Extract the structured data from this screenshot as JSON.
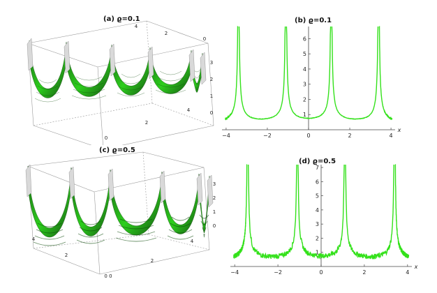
{
  "chart_data": [
    {
      "id": "a",
      "type": "surface3d",
      "title": "(a) ϱ=0.1",
      "axis_x_ticks": [
        "0",
        "2",
        "4"
      ],
      "axis_y_ticks": [
        "0",
        "2",
        "4"
      ],
      "axis_z_ticks": [
        "0",
        "1",
        "2",
        "3"
      ],
      "surface_color": "#22cc11",
      "peaks": 6
    },
    {
      "id": "b",
      "type": "line",
      "title": "(b) ϱ=0.1",
      "xlabel": "x",
      "xlim": [
        -4.2,
        4.2
      ],
      "ylim": [
        0,
        6.8
      ],
      "x_ticks": [
        -4,
        -2,
        0,
        2,
        4
      ],
      "x_tick_labels": [
        "−4",
        "−2",
        "0",
        "2",
        "4"
      ],
      "y_ticks": [
        1,
        2,
        3,
        4,
        5,
        6
      ],
      "y_tick_labels": [
        "1",
        "2",
        "3",
        "4",
        "5",
        "6"
      ],
      "singularities": [
        -3.4,
        -1.1,
        1.1,
        3.4
      ],
      "minima": [
        {
          "x": -2.3,
          "y": 0.7
        },
        {
          "x": 0,
          "y": 0.85
        },
        {
          "x": 2.3,
          "y": 0.7
        }
      ],
      "noise": 0.03,
      "series": [
        {
          "name": "ϱ=0.1",
          "color": "#33e11a"
        }
      ]
    },
    {
      "id": "c",
      "type": "surface3d",
      "title": "(c) ϱ=0.5",
      "axis_x_ticks": [
        "0",
        "2",
        "4"
      ],
      "axis_y_ticks": [
        "0",
        "2",
        "4"
      ],
      "axis_z_ticks": [
        "0",
        "1",
        "2",
        "3"
      ],
      "surface_color": "#22cc11",
      "peaks": 6
    },
    {
      "id": "d",
      "type": "line",
      "title": "(d) ϱ=0.5",
      "xlabel": "x",
      "xlim": [
        -4.2,
        4.2
      ],
      "ylim": [
        0,
        7.2
      ],
      "x_ticks": [
        -4,
        -2,
        0,
        2,
        4
      ],
      "x_tick_labels": [
        "−4",
        "−2",
        "0",
        "2",
        "4"
      ],
      "y_ticks": [
        1,
        2,
        3,
        4,
        5,
        6,
        7
      ],
      "y_tick_labels": [
        "1",
        "2",
        "3",
        "4",
        "5",
        "6",
        "7"
      ],
      "singularities": [
        -3.4,
        -1.1,
        1.1,
        3.4
      ],
      "minima": [
        {
          "x": -2.3,
          "y": 0.75
        },
        {
          "x": 0,
          "y": 0.9
        },
        {
          "x": 2.3,
          "y": 0.75
        }
      ],
      "noise": 0.35,
      "series": [
        {
          "name": "ϱ=0.5",
          "color": "#33e11a"
        }
      ]
    }
  ]
}
